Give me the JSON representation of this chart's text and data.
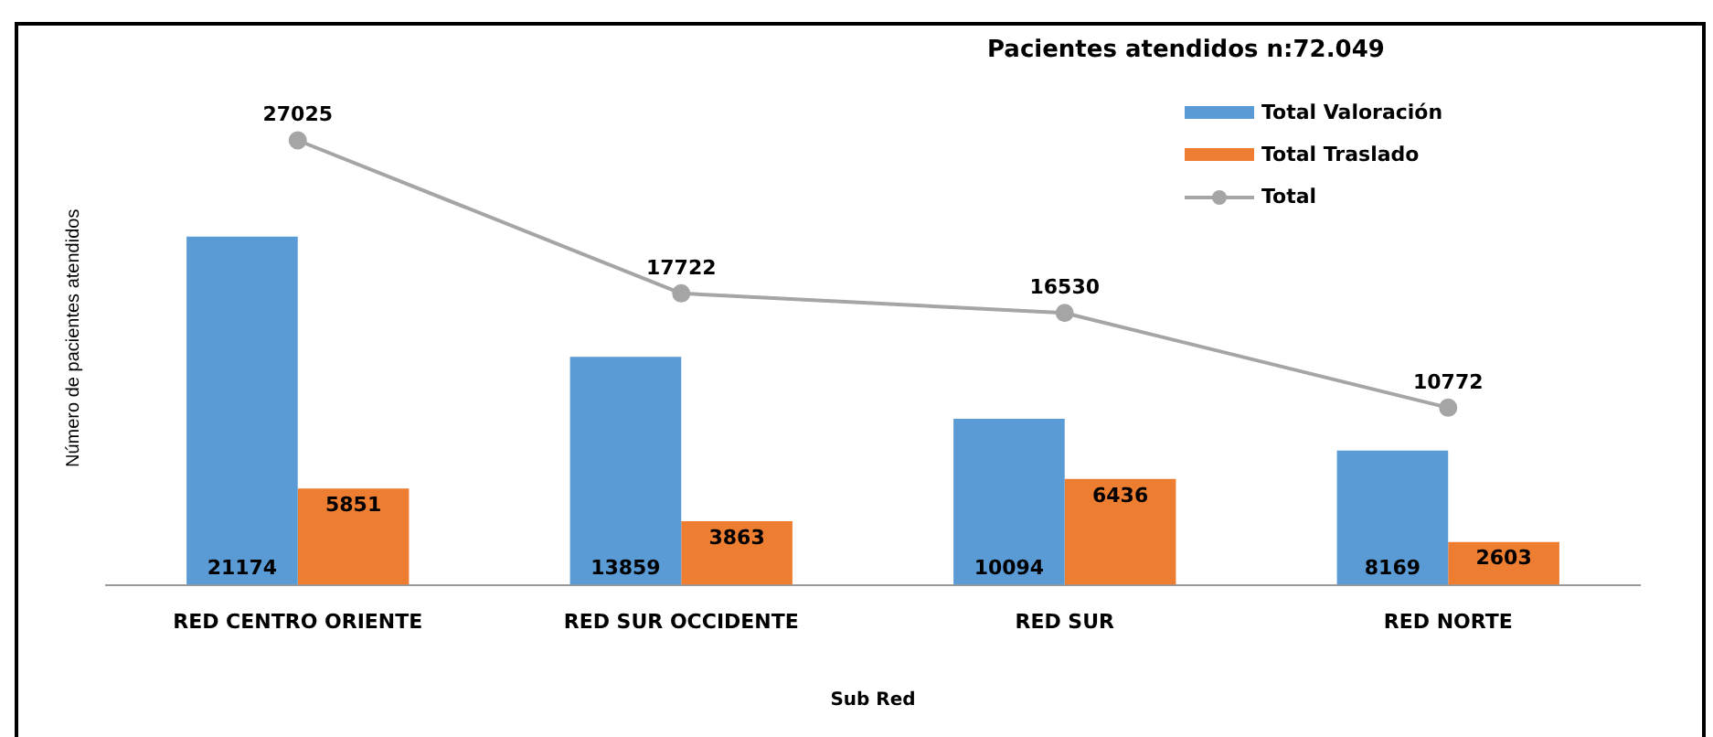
{
  "chart_data": {
    "type": "bar",
    "subtitle": "Pacientes atendidos n:72.049",
    "xlabel": "Sub Red",
    "ylabel": "Número de pacientes atendidos",
    "categories": [
      "RED CENTRO ORIENTE",
      "RED SUR OCCIDENTE",
      "RED SUR",
      "RED NORTE"
    ],
    "series": [
      {
        "name": "Total Valoración",
        "color": "#5b9bd5",
        "values": [
          21174,
          13859,
          10094,
          8169
        ]
      },
      {
        "name": "Total Traslado",
        "color": "#ed7d31",
        "values": [
          5851,
          3863,
          6436,
          2603
        ]
      },
      {
        "name": "Total",
        "type": "line",
        "color": "#a5a5a5",
        "values": [
          27025,
          17722,
          16530,
          10772
        ]
      }
    ],
    "data_labels": true,
    "legend": "top right",
    "grid": false,
    "marker": "circle"
  }
}
